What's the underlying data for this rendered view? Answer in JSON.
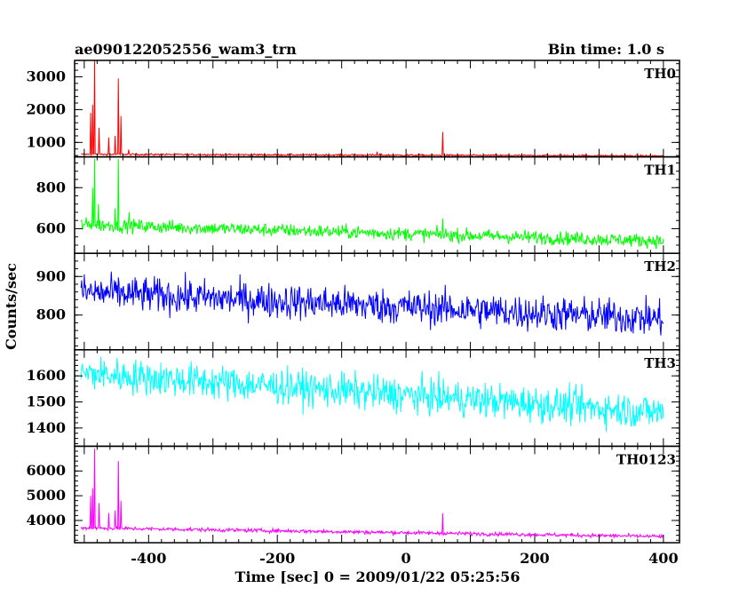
{
  "chart_data": {
    "type": "line",
    "title": "ae090122052556_wam3_trn",
    "bin_time": "Bin time: 1.0 s",
    "xlabel": "Time [sec] 0 = 2009/01/22 05:25:56",
    "ylabel": "Counts/sec",
    "xlim": [
      -515,
      425
    ],
    "x_ticks": [
      "-400",
      "-200",
      "0",
      "200",
      "400"
    ],
    "x_tick_values": [
      -400,
      -200,
      0,
      200,
      400
    ],
    "x_data_range": [
      -505,
      400
    ],
    "grid": false,
    "panels": [
      {
        "name": "TH0",
        "color": "#ff0000",
        "ylim": [
          560,
          3500
        ],
        "y_ticks": [
          "1000",
          "2000",
          "3000"
        ],
        "y_tick_values": [
          1000,
          2000,
          3000
        ],
        "baseline_start": 640,
        "baseline_end": 590,
        "noise": 25,
        "spikes": [
          [
            -490,
            1900
          ],
          [
            -487,
            2150
          ],
          [
            -484,
            3500
          ],
          [
            -477,
            1450
          ],
          [
            -462,
            1150
          ],
          [
            -452,
            1200
          ],
          [
            -447,
            2950
          ],
          [
            -443,
            1800
          ],
          [
            -431,
            780
          ],
          [
            -45,
            720
          ],
          [
            57,
            1320
          ]
        ]
      },
      {
        "name": "TH1",
        "color": "#00ff00",
        "ylim": [
          480,
          950
        ],
        "y_ticks": [
          "600",
          "800"
        ],
        "y_tick_values": [
          600,
          800
        ],
        "baseline_start": 620,
        "baseline_end": 540,
        "noise": 30,
        "spikes": [
          [
            -487,
            800
          ],
          [
            -484,
            940
          ],
          [
            -478,
            720
          ],
          [
            -452,
            700
          ],
          [
            -447,
            940
          ],
          [
            -430,
            680
          ],
          [
            57,
            650
          ]
        ]
      },
      {
        "name": "TH2",
        "color": "#0000ff",
        "ylim": [
          710,
          960
        ],
        "y_ticks": [
          "800",
          "900"
        ],
        "y_tick_values": [
          800,
          900
        ],
        "baseline_start": 860,
        "baseline_end": 790,
        "noise": 42,
        "spikes": []
      },
      {
        "name": "TH3",
        "color": "#00ffff",
        "ylim": [
          1330,
          1700
        ],
        "y_ticks": [
          "1400",
          "1500",
          "1600"
        ],
        "y_tick_values": [
          1400,
          1500,
          1600
        ],
        "baseline_start": 1610,
        "baseline_end": 1460,
        "noise": 62,
        "spikes": []
      },
      {
        "name": "TH0123",
        "color": "#ff00ff",
        "ylim": [
          3100,
          7000
        ],
        "y_ticks": [
          "4000",
          "5000",
          "6000"
        ],
        "y_tick_values": [
          4000,
          5000,
          6000
        ],
        "baseline_start": 3700,
        "baseline_end": 3350,
        "noise": 70,
        "spikes": [
          [
            -490,
            5000
          ],
          [
            -487,
            5300
          ],
          [
            -484,
            6900
          ],
          [
            -477,
            4700
          ],
          [
            -462,
            4300
          ],
          [
            -452,
            4400
          ],
          [
            -447,
            6400
          ],
          [
            -443,
            4800
          ],
          [
            57,
            4300
          ]
        ]
      }
    ]
  }
}
